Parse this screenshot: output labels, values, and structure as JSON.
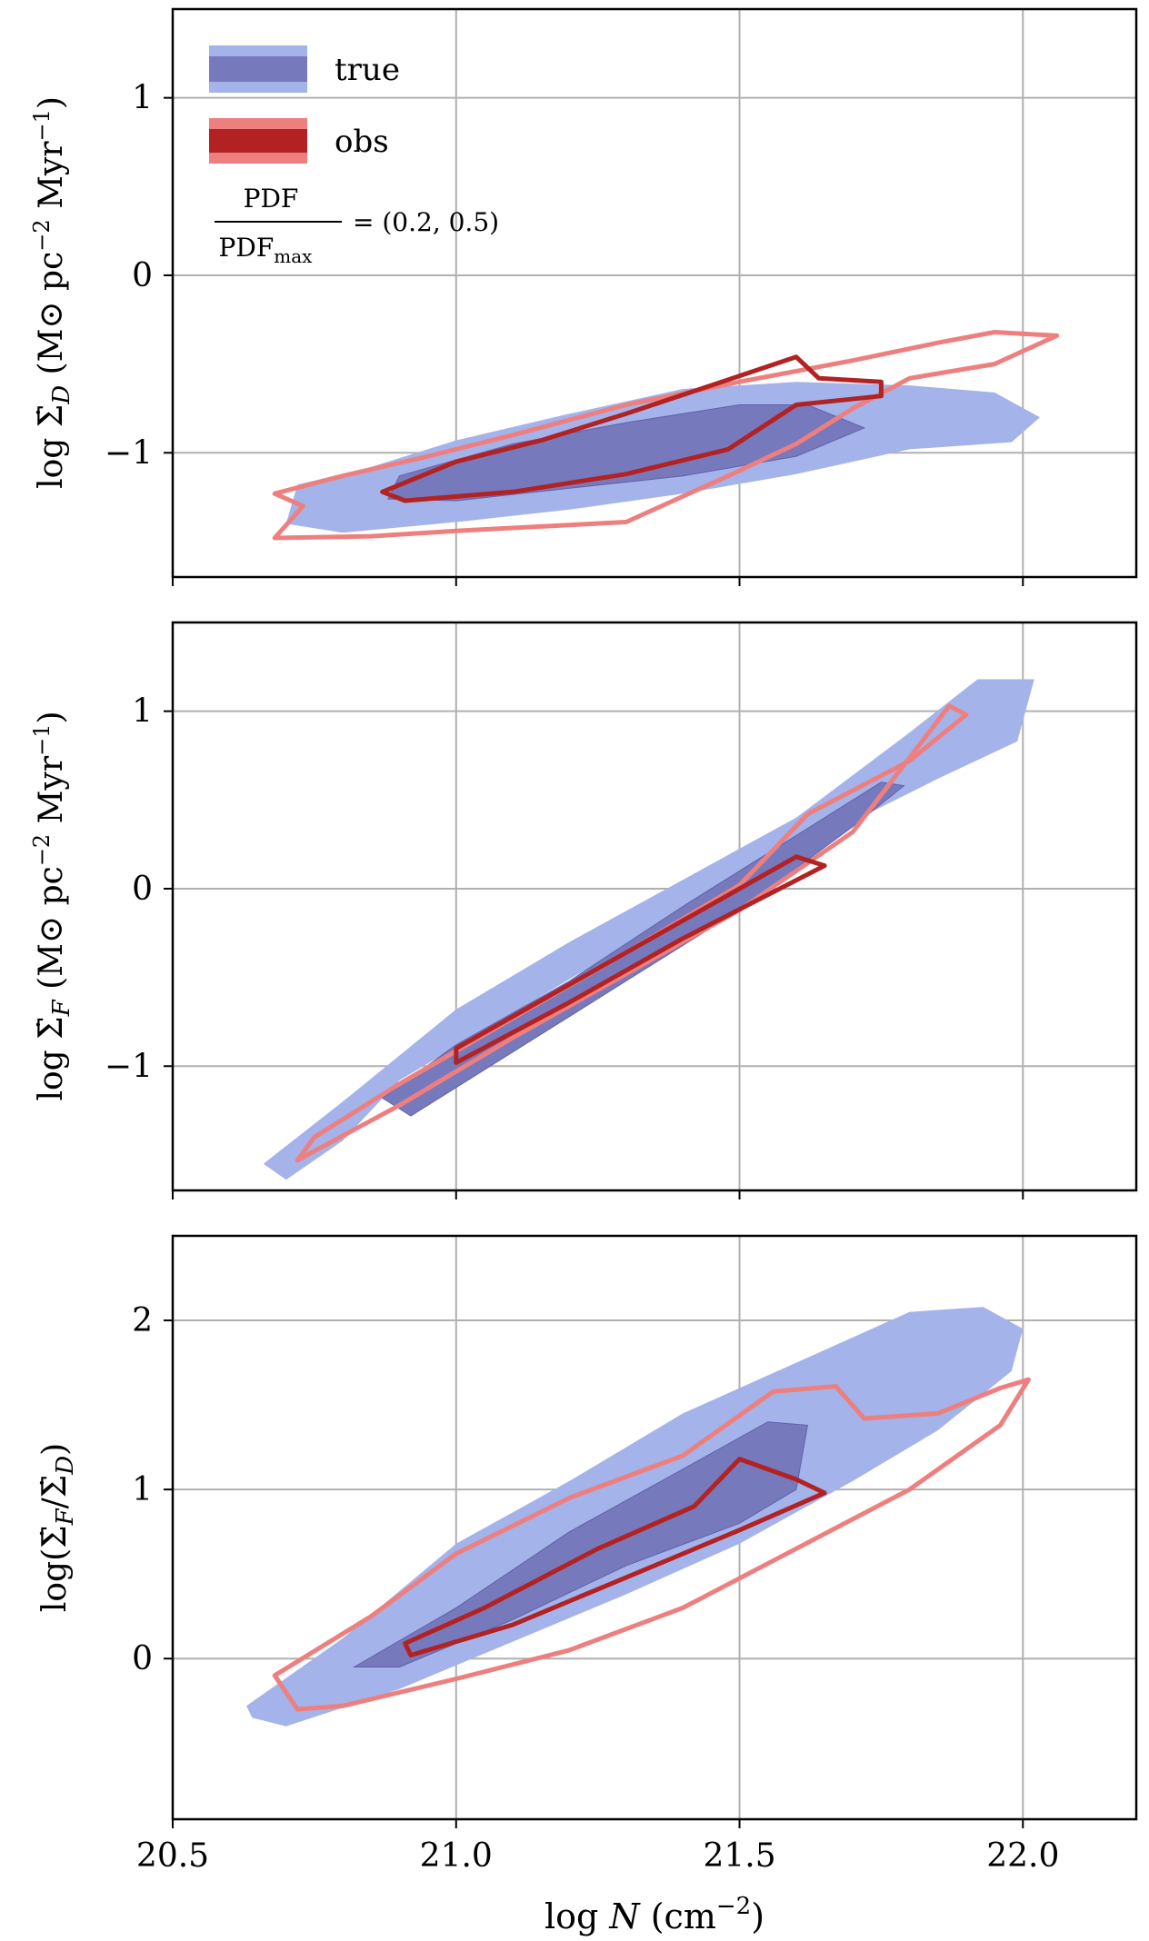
{
  "legend": {
    "true_label": "true",
    "obs_label": "obs",
    "pdf_num": "PDF",
    "pdf_den": "PDF",
    "pdf_den_sub": "max",
    "pdf_levels_text": "= (0.2, 0.5)"
  },
  "colors": {
    "true_outer": "#a4b3ea",
    "true_inner": "#7779bd",
    "obs_outer": "#ee7f7f",
    "obs_inner": "#b22222",
    "grid": "#b0b0b0",
    "axis": "#000000"
  },
  "chart_data": [
    {
      "type": "contour",
      "panel": "top",
      "ylabel": "log Σ̇_D (M⊙ pc⁻² Myr⁻¹)",
      "xlim": [
        20.5,
        22.2
      ],
      "ylim": [
        -1.7,
        1.5
      ],
      "xticks": [
        20.5,
        21.0,
        21.5,
        22.0
      ],
      "yticks": [
        -1,
        0,
        1
      ],
      "ytick_labels": [
        "−1",
        "0",
        "1"
      ],
      "contours": {
        "true_outer": [
          [
            20.72,
            -1.18
          ],
          [
            20.85,
            -1.08
          ],
          [
            21.0,
            -0.93
          ],
          [
            21.2,
            -0.78
          ],
          [
            21.4,
            -0.64
          ],
          [
            21.6,
            -0.6
          ],
          [
            21.8,
            -0.62
          ],
          [
            21.95,
            -0.66
          ],
          [
            22.03,
            -0.8
          ],
          [
            21.98,
            -0.94
          ],
          [
            21.8,
            -0.98
          ],
          [
            21.6,
            -1.12
          ],
          [
            21.4,
            -1.23
          ],
          [
            21.2,
            -1.32
          ],
          [
            21.0,
            -1.39
          ],
          [
            20.8,
            -1.45
          ],
          [
            20.7,
            -1.4
          ]
        ],
        "true_inner": [
          [
            20.9,
            -1.13
          ],
          [
            21.1,
            -0.95
          ],
          [
            21.3,
            -0.83
          ],
          [
            21.5,
            -0.73
          ],
          [
            21.62,
            -0.73
          ],
          [
            21.72,
            -0.86
          ],
          [
            21.6,
            -1.02
          ],
          [
            21.4,
            -1.13
          ],
          [
            21.2,
            -1.2
          ],
          [
            21.0,
            -1.27
          ],
          [
            20.88,
            -1.26
          ]
        ],
        "obs_outer": [
          [
            20.68,
            -1.23
          ],
          [
            20.8,
            -1.13
          ],
          [
            20.95,
            -1.02
          ],
          [
            21.1,
            -0.9
          ],
          [
            21.3,
            -0.73
          ],
          [
            21.5,
            -0.6
          ],
          [
            21.7,
            -0.48
          ],
          [
            21.85,
            -0.38
          ],
          [
            21.95,
            -0.32
          ],
          [
            22.06,
            -0.34
          ],
          [
            21.95,
            -0.5
          ],
          [
            21.8,
            -0.58
          ],
          [
            21.7,
            -0.75
          ],
          [
            21.6,
            -0.95
          ],
          [
            21.48,
            -1.13
          ],
          [
            21.3,
            -1.39
          ],
          [
            21.0,
            -1.44
          ],
          [
            20.85,
            -1.47
          ],
          [
            20.68,
            -1.48
          ],
          [
            20.73,
            -1.3
          ]
        ],
        "obs_inner": [
          [
            20.87,
            -1.22
          ],
          [
            21.0,
            -1.05
          ],
          [
            21.15,
            -0.93
          ],
          [
            21.3,
            -0.78
          ],
          [
            21.45,
            -0.62
          ],
          [
            21.6,
            -0.46
          ],
          [
            21.64,
            -0.58
          ],
          [
            21.75,
            -0.6
          ],
          [
            21.75,
            -0.68
          ],
          [
            21.6,
            -0.73
          ],
          [
            21.48,
            -0.98
          ],
          [
            21.3,
            -1.12
          ],
          [
            21.1,
            -1.22
          ],
          [
            20.91,
            -1.27
          ]
        ]
      }
    },
    {
      "type": "contour",
      "panel": "middle",
      "ylabel": "log Σ̇_F (M⊙ pc⁻² Myr⁻¹)",
      "xlim": [
        20.5,
        22.2
      ],
      "ylim": [
        -1.7,
        1.5
      ],
      "xticks": [
        20.5,
        21.0,
        21.5,
        22.0
      ],
      "yticks": [
        -1,
        0,
        1
      ],
      "ytick_labels": [
        "−1",
        "0",
        "1"
      ],
      "contours": {
        "true_outer": [
          [
            20.66,
            -1.55
          ],
          [
            20.8,
            -1.2
          ],
          [
            21.0,
            -0.68
          ],
          [
            21.2,
            -0.3
          ],
          [
            21.4,
            0.05
          ],
          [
            21.6,
            0.4
          ],
          [
            21.8,
            0.88
          ],
          [
            21.92,
            1.18
          ],
          [
            22.02,
            1.18
          ],
          [
            21.99,
            0.83
          ],
          [
            21.85,
            0.62
          ],
          [
            21.7,
            0.38
          ],
          [
            21.5,
            0.08
          ],
          [
            21.3,
            -0.32
          ],
          [
            21.1,
            -0.7
          ],
          [
            20.9,
            -1.08
          ],
          [
            20.8,
            -1.42
          ],
          [
            20.7,
            -1.64
          ]
        ],
        "true_inner": [
          [
            20.87,
            -1.18
          ],
          [
            21.0,
            -0.88
          ],
          [
            21.2,
            -0.52
          ],
          [
            21.4,
            -0.1
          ],
          [
            21.6,
            0.3
          ],
          [
            21.75,
            0.6
          ],
          [
            21.79,
            0.58
          ],
          [
            21.7,
            0.35
          ],
          [
            21.5,
            -0.12
          ],
          [
            21.3,
            -0.52
          ],
          [
            21.1,
            -0.92
          ],
          [
            20.92,
            -1.28
          ]
        ],
        "obs_outer": [
          [
            20.72,
            -1.53
          ],
          [
            20.9,
            -1.22
          ],
          [
            21.1,
            -0.84
          ],
          [
            21.3,
            -0.48
          ],
          [
            21.5,
            -0.12
          ],
          [
            21.7,
            0.32
          ],
          [
            21.87,
            1.03
          ],
          [
            21.9,
            0.98
          ],
          [
            21.8,
            0.72
          ],
          [
            21.62,
            0.42
          ],
          [
            21.5,
            0.02
          ],
          [
            21.3,
            -0.36
          ],
          [
            21.1,
            -0.73
          ],
          [
            20.9,
            -1.1
          ],
          [
            20.75,
            -1.4
          ]
        ],
        "obs_inner": [
          [
            21.0,
            -0.9
          ],
          [
            21.2,
            -0.54
          ],
          [
            21.4,
            -0.18
          ],
          [
            21.6,
            0.18
          ],
          [
            21.65,
            0.13
          ],
          [
            21.4,
            -0.28
          ],
          [
            21.2,
            -0.64
          ],
          [
            21.0,
            -0.98
          ]
        ]
      }
    },
    {
      "type": "contour",
      "panel": "bottom",
      "ylabel": "log(Σ̇_F/Σ̇_D)",
      "xlabel": "log N (cm⁻²)",
      "xlim": [
        20.5,
        22.2
      ],
      "ylim": [
        -0.95,
        2.5
      ],
      "xticks": [
        20.5,
        21.0,
        21.5,
        22.0
      ],
      "xtick_labels": [
        "20.5",
        "21.0",
        "21.5",
        "22.0"
      ],
      "yticks": [
        0,
        1,
        2
      ],
      "ytick_labels": [
        "0",
        "1",
        "2"
      ],
      "contours": {
        "true_outer": [
          [
            20.63,
            -0.28
          ],
          [
            20.8,
            0.12
          ],
          [
            21.0,
            0.68
          ],
          [
            21.2,
            1.05
          ],
          [
            21.4,
            1.45
          ],
          [
            21.6,
            1.75
          ],
          [
            21.8,
            2.05
          ],
          [
            21.93,
            2.08
          ],
          [
            22.0,
            1.95
          ],
          [
            21.98,
            1.7
          ],
          [
            21.85,
            1.35
          ],
          [
            21.7,
            1.05
          ],
          [
            21.5,
            0.68
          ],
          [
            21.3,
            0.38
          ],
          [
            21.1,
            0.1
          ],
          [
            20.9,
            -0.18
          ],
          [
            20.7,
            -0.4
          ],
          [
            20.64,
            -0.35
          ]
        ],
        "true_inner": [
          [
            20.82,
            -0.05
          ],
          [
            21.0,
            0.3
          ],
          [
            21.2,
            0.75
          ],
          [
            21.4,
            1.12
          ],
          [
            21.55,
            1.4
          ],
          [
            21.62,
            1.38
          ],
          [
            21.6,
            1.0
          ],
          [
            21.5,
            0.8
          ],
          [
            21.3,
            0.55
          ],
          [
            21.1,
            0.23
          ],
          [
            20.9,
            -0.05
          ]
        ],
        "obs_outer": [
          [
            20.68,
            -0.1
          ],
          [
            20.85,
            0.25
          ],
          [
            21.0,
            0.62
          ],
          [
            21.2,
            0.95
          ],
          [
            21.4,
            1.2
          ],
          [
            21.56,
            1.58
          ],
          [
            21.67,
            1.61
          ],
          [
            21.72,
            1.42
          ],
          [
            21.85,
            1.45
          ],
          [
            21.96,
            1.6
          ],
          [
            22.01,
            1.65
          ],
          [
            21.96,
            1.38
          ],
          [
            21.8,
            1.0
          ],
          [
            21.6,
            0.65
          ],
          [
            21.4,
            0.3
          ],
          [
            21.2,
            0.05
          ],
          [
            21.0,
            -0.12
          ],
          [
            20.8,
            -0.28
          ],
          [
            20.72,
            -0.3
          ]
        ],
        "obs_inner": [
          [
            20.91,
            0.09
          ],
          [
            21.05,
            0.3
          ],
          [
            21.25,
            0.65
          ],
          [
            21.42,
            0.9
          ],
          [
            21.5,
            1.18
          ],
          [
            21.6,
            1.06
          ],
          [
            21.65,
            0.98
          ],
          [
            21.5,
            0.76
          ],
          [
            21.3,
            0.48
          ],
          [
            21.1,
            0.2
          ],
          [
            20.92,
            0.02
          ]
        ]
      }
    }
  ]
}
